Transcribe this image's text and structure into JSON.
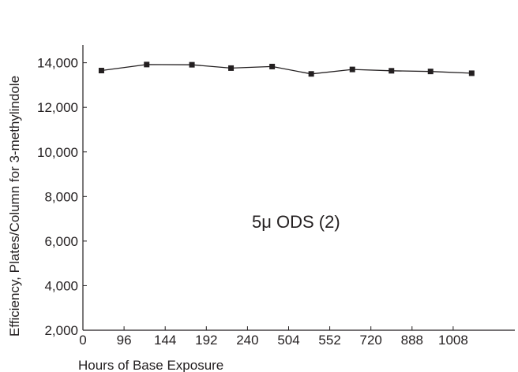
{
  "chart_data": {
    "type": "line",
    "title": "",
    "xlabel": "Hours of Base Exposure",
    "ylabel": "Efficiency, Plates/Column for 3-methylindole",
    "annotation": "5μ ODS (2)",
    "x_tick_labels": [
      "0",
      "96",
      "144",
      "192",
      "240",
      "504",
      "552",
      "720",
      "888",
      "1008"
    ],
    "y_ticks": [
      2000,
      4000,
      6000,
      8000,
      10000,
      12000,
      14000
    ],
    "y_tick_labels": [
      "2,000",
      "4,000",
      "6,000",
      "8,000",
      "10,000",
      "12,000",
      "14,000"
    ],
    "ylim": [
      2000,
      14800
    ],
    "grid": false,
    "series": [
      {
        "marker": "square",
        "color": "#231f20",
        "points": [
          {
            "x_index": 0.45,
            "y": 13650
          },
          {
            "x_index": 1.55,
            "y": 13920
          },
          {
            "x_index": 2.65,
            "y": 13910
          },
          {
            "x_index": 3.6,
            "y": 13760
          },
          {
            "x_index": 4.6,
            "y": 13830
          },
          {
            "x_index": 5.55,
            "y": 13500
          },
          {
            "x_index": 6.55,
            "y": 13700
          },
          {
            "x_index": 7.5,
            "y": 13640
          },
          {
            "x_index": 8.45,
            "y": 13610
          },
          {
            "x_index": 9.45,
            "y": 13530
          }
        ]
      }
    ]
  }
}
